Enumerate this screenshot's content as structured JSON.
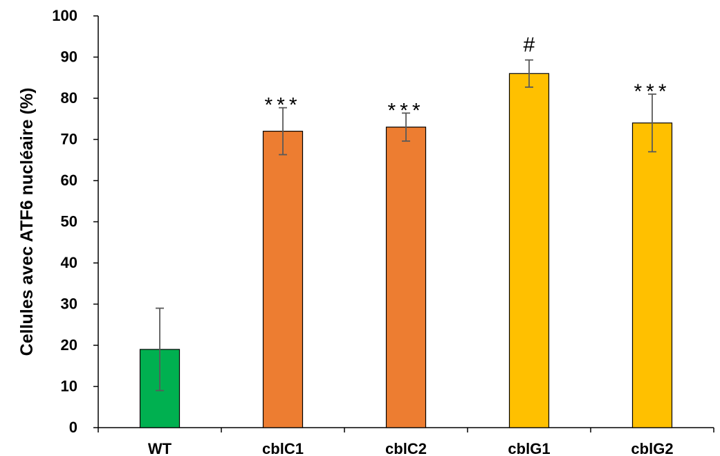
{
  "chart_data": {
    "type": "bar",
    "title": "",
    "xlabel": "",
    "ylabel": "Cellules avec ATF6 nucléaire (%)",
    "ylim": [
      0,
      100
    ],
    "yticks": [
      0,
      10,
      20,
      30,
      40,
      50,
      60,
      70,
      80,
      90,
      100
    ],
    "categories": [
      "WT",
      "cblC1",
      "cblC2",
      "cblG1",
      "cblG2"
    ],
    "values": [
      19,
      72,
      73,
      86,
      74
    ],
    "errors": [
      10,
      5.7,
      3.4,
      3.3,
      7
    ],
    "colors": [
      "#00b050",
      "#ed7d31",
      "#ed7d31",
      "#ffc000",
      "#ffc000"
    ],
    "annotations": [
      "",
      "***",
      "***",
      "#",
      "***"
    ],
    "grid": false,
    "legend": "none"
  }
}
